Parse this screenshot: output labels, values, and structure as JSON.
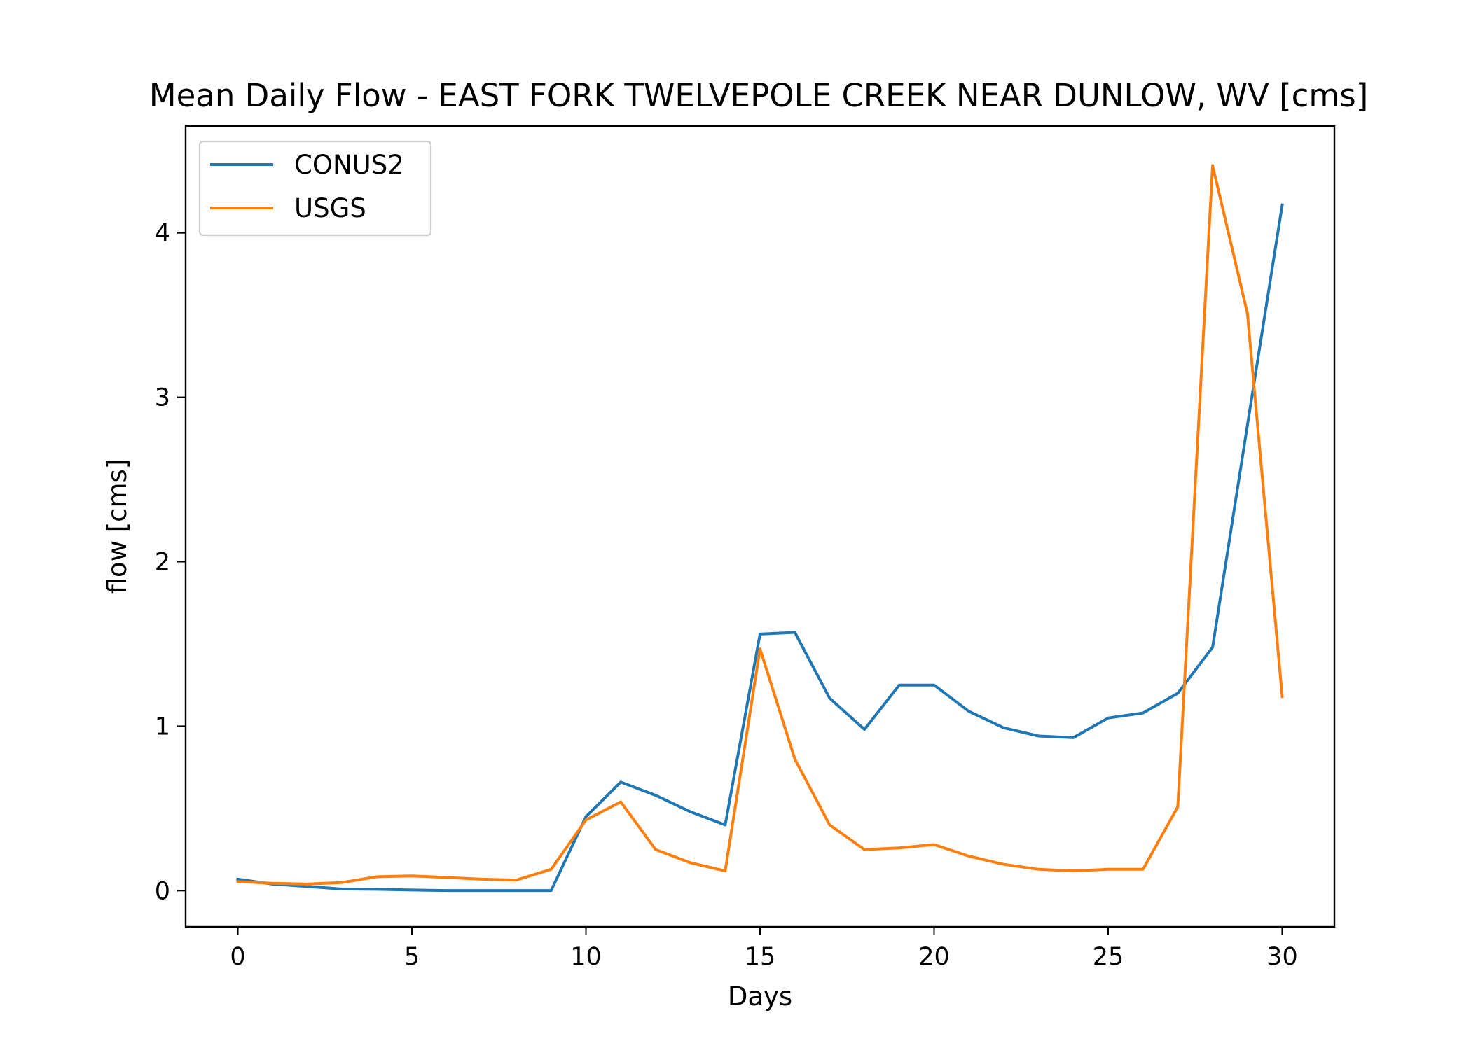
{
  "chart_data": {
    "type": "line",
    "title": "Mean Daily Flow - EAST FORK TWELVEPOLE CREEK NEAR DUNLOW, WV [cms]",
    "xlabel": "Days",
    "ylabel": "flow [cms]",
    "xlim": [
      -1.5,
      31.5
    ],
    "ylim": [
      -0.22,
      4.65
    ],
    "xticks": [
      0,
      5,
      10,
      15,
      20,
      25,
      30
    ],
    "yticks": [
      0,
      1,
      2,
      3,
      4
    ],
    "grid": false,
    "legend_position": "upper left",
    "x": [
      0,
      1,
      2,
      3,
      4,
      5,
      6,
      7,
      8,
      9,
      10,
      11,
      12,
      13,
      14,
      15,
      16,
      17,
      18,
      19,
      20,
      21,
      22,
      23,
      24,
      25,
      26,
      27,
      28,
      29,
      30
    ],
    "series": [
      {
        "name": "CONUS2",
        "color": "#1f77b4",
        "values": [
          0.07,
          0.04,
          0.025,
          0.01,
          0.008,
          0.004,
          0.001,
          0.001,
          0.001,
          0.001,
          0.45,
          0.66,
          0.58,
          0.48,
          0.4,
          1.56,
          1.57,
          1.17,
          0.98,
          1.25,
          1.25,
          1.09,
          0.99,
          0.94,
          0.93,
          1.05,
          1.08,
          1.2,
          1.48,
          2.83,
          4.17
        ]
      },
      {
        "name": "USGS",
        "color": "#ff7f0e",
        "values": [
          0.055,
          0.045,
          0.04,
          0.05,
          0.085,
          0.09,
          0.08,
          0.07,
          0.065,
          0.13,
          0.43,
          0.54,
          0.25,
          0.17,
          0.12,
          1.47,
          0.8,
          0.4,
          0.25,
          0.26,
          0.28,
          0.21,
          0.16,
          0.13,
          0.12,
          0.13,
          0.13,
          0.51,
          4.41,
          3.51,
          1.18
        ]
      }
    ]
  }
}
